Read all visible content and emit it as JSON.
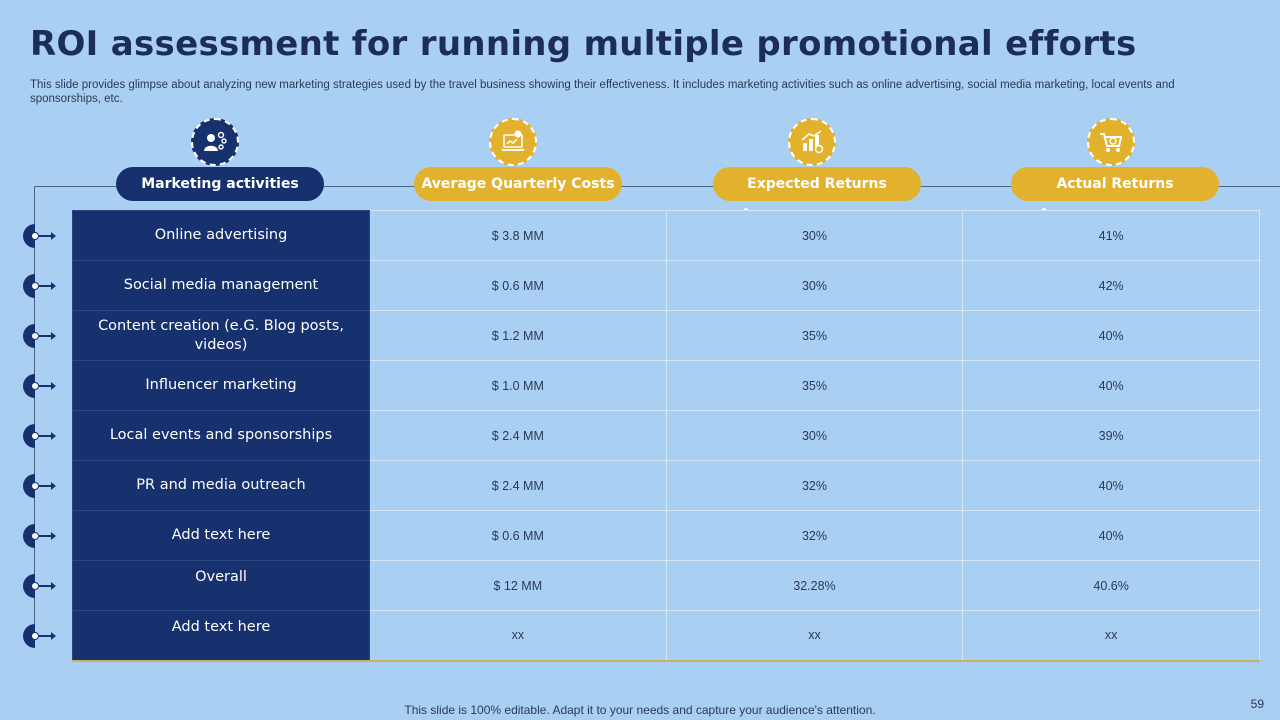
{
  "title": "ROI assessment for running multiple promotional efforts",
  "subtitle": "This slide provides glimpse about analyzing new marketing strategies used by the travel business showing their effectiveness. It includes marketing activities such as online advertising, social media marketing, local events and sponsorships, etc.",
  "columns": [
    {
      "label": "Marketing activities",
      "icon": "marketing-people-icon",
      "color": "#17316e"
    },
    {
      "label": "Average Quarterly Costs",
      "icon": "laptop-dollar-icon",
      "color": "#e2b22e"
    },
    {
      "label": "Expected Returns",
      "icon": "growth-chart-icon",
      "color": "#e2b22e"
    },
    {
      "label": "Actual Returns",
      "icon": "shopping-cart-icon",
      "color": "#e2b22e"
    }
  ],
  "rows": [
    {
      "activity": "Online advertising",
      "cost": "$ 3.8 MM",
      "expected": "30%",
      "actual": "41%"
    },
    {
      "activity": "Social media management",
      "cost": "$ 0.6 MM",
      "expected": "30%",
      "actual": "42%"
    },
    {
      "activity": "Content creation (e.G. Blog posts, videos)",
      "cost": "$ 1.2 MM",
      "expected": "35%",
      "actual": "40%"
    },
    {
      "activity": "Influencer marketing",
      "cost": "$ 1.0 MM",
      "expected": "35%",
      "actual": "40%"
    },
    {
      "activity": "Local events and sponsorships",
      "cost": "$ 2.4 MM",
      "expected": "30%",
      "actual": "39%"
    },
    {
      "activity": "PR and media outreach",
      "cost": "$ 2.4 MM",
      "expected": "32%",
      "actual": "40%"
    },
    {
      "activity": "Add text here",
      "cost": "$ 0.6 MM",
      "expected": "32%",
      "actual": "40%"
    },
    {
      "activity": "Overall",
      "cost": "$ 12 MM",
      "expected": "32.28%",
      "actual": "40.6%"
    },
    {
      "activity": "Add text here",
      "cost": "xx",
      "expected": "xx",
      "actual": "xx"
    }
  ],
  "footer": "This slide is 100% editable. Adapt it to your needs and capture your audience's attention.",
  "page_number": "59",
  "colors": {
    "navy": "#17316e",
    "gold": "#e2b22e",
    "background": "#a9cff3"
  }
}
